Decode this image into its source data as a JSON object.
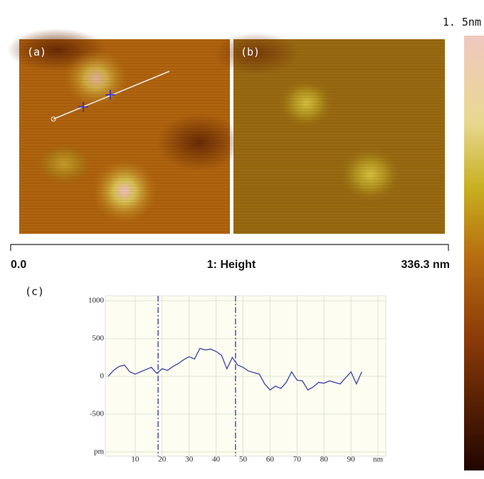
{
  "figure": {
    "panel_a_label": "(a)",
    "panel_b_label": "(b)",
    "colorbar_max": "1. 5nm",
    "scale_start": "0.0",
    "channel": "1: Height",
    "scale_end": "336.3 nm",
    "panel_c_label": "(c)"
  },
  "chart_data": {
    "type": "line",
    "x": [
      0,
      2,
      4,
      6,
      8,
      10,
      12,
      14,
      16,
      18,
      20,
      22,
      24,
      26,
      28,
      30,
      32,
      34,
      36,
      38,
      40,
      42,
      44,
      46,
      48,
      50,
      52,
      54,
      56,
      58,
      60,
      62,
      64,
      66,
      68,
      70,
      72,
      74,
      76,
      78,
      80,
      82,
      84,
      86,
      88,
      90,
      92,
      94
    ],
    "series": [
      {
        "color": "#3b40a8",
        "values": [
          0,
          80,
          130,
          150,
          60,
          30,
          60,
          90,
          120,
          40,
          100,
          80,
          130,
          170,
          220,
          260,
          230,
          370,
          350,
          360,
          330,
          280,
          100,
          250,
          150,
          120,
          70,
          50,
          30,
          -100,
          -180,
          -130,
          -160,
          -80,
          60,
          -50,
          -60,
          -180,
          -140,
          -80,
          -90,
          -60,
          -80,
          -100,
          -20,
          60,
          -100,
          60
        ]
      }
    ],
    "xlim": [
      0,
      102
    ],
    "ylim": [
      -1000,
      1000
    ],
    "xticks": [
      10,
      20,
      30,
      40,
      50,
      60,
      70,
      80,
      90,
      {
        "value": 100,
        "label": "nm"
      }
    ],
    "yticks": [
      {
        "value": -1000,
        "label": "pm"
      },
      -500,
      0,
      500,
      1000
    ],
    "grid": true,
    "markers": [
      18.5,
      47.2
    ],
    "marker_color": "#2d35a0"
  }
}
